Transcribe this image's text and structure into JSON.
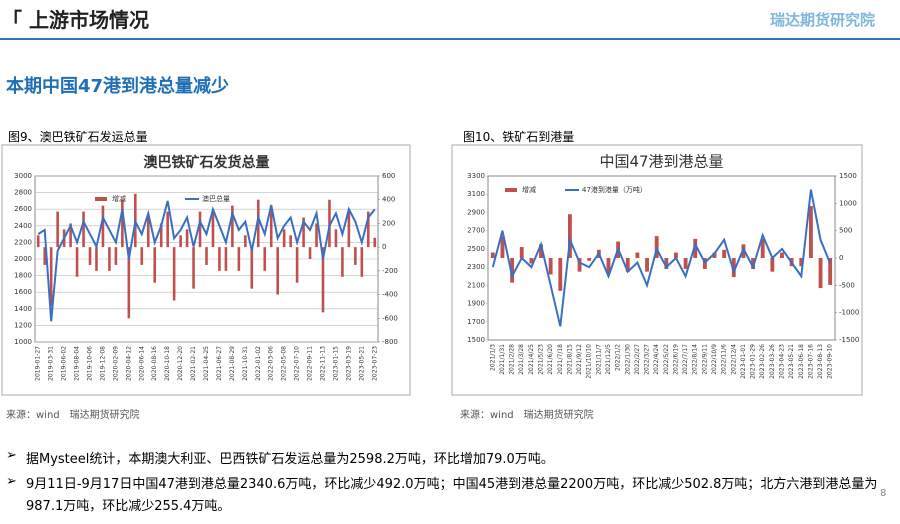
{
  "header": {
    "title": "「 上游市场情况",
    "logo": "瑞达期货研究院"
  },
  "heading": "本期中国47港到港总量减少",
  "figures": [
    {
      "caption": "图9、澳巴铁矿石发运总量",
      "source": "来源：wind　瑞达期货研究院"
    },
    {
      "caption": "图10、铁矿石到港量",
      "source": "来源：wind　瑞达期货研究院"
    }
  ],
  "bullets": [
    "据Mysteel统计，本期澳大利亚、巴西铁矿石发运总量为2598.2万吨，环比增加79.0万吨。",
    "9月11日-9月17日中国47港到港总量2340.6万吨，环比减少492.0万吨；中国45港到港总量2200万吨，环比减少502.8万吨；北方六港到港总量为987.1万吨，环比减少255.4万吨。"
  ],
  "page_number": "8",
  "chart_data": [
    {
      "type": "combo",
      "title": "澳巴铁矿石发货总量",
      "categories": [
        "2019-01-27",
        null,
        "2019-03-31",
        null,
        "2019-06-02",
        null,
        "2019-08-04",
        null,
        "2019-10-06",
        null,
        "2019-12-08",
        null,
        "2020-02-09",
        null,
        "2020-04-12",
        null,
        "2020-06-14",
        null,
        "2020-08-16",
        null,
        "2020-10-18",
        null,
        "2020-12-20",
        null,
        "2021-02-21",
        null,
        "2021-04-25",
        null,
        "2021-06-27",
        null,
        "2021-08-29",
        null,
        "2021-10-31",
        null,
        "2022-01-02",
        null,
        "2022-03-06",
        null,
        "2022-05-08",
        null,
        "2022-07-10",
        null,
        "2022-09-11",
        null,
        "2022-11-13",
        null,
        "2023-01-15",
        null,
        "2023-03-19",
        null,
        "2023-05-21",
        null,
        "2023-07-23"
      ],
      "series": [
        {
          "name": "增减",
          "type": "bar",
          "axis": "y2",
          "color": "#c0504d",
          "values": [
            100,
            -150,
            -500,
            300,
            150,
            200,
            -250,
            300,
            -150,
            -200,
            350,
            -200,
            -150,
            400,
            -600,
            450,
            -150,
            250,
            -300,
            200,
            300,
            -450,
            100,
            150,
            -350,
            300,
            -150,
            300,
            -200,
            -200,
            350,
            -200,
            100,
            -350,
            400,
            -200,
            350,
            -400,
            150,
            100,
            -300,
            250,
            -100,
            200,
            -550,
            400,
            150,
            -250,
            300,
            -150,
            -250,
            300,
            79
          ]
        },
        {
          "name": "澳巴总量",
          "type": "line",
          "color": "#3a6fc4",
          "values": [
            2300,
            2350,
            1250,
            2100,
            2250,
            2400,
            2200,
            2450,
            2300,
            2150,
            2500,
            2350,
            2200,
            2600,
            2000,
            2450,
            2300,
            2550,
            2200,
            2400,
            2700,
            2250,
            2350,
            2500,
            2150,
            2450,
            2300,
            2600,
            2400,
            2200,
            2550,
            2350,
            2450,
            2100,
            2500,
            2300,
            2650,
            2250,
            2400,
            2500,
            2200,
            2450,
            2350,
            2550,
            2000,
            2400,
            2550,
            2300,
            2600,
            2450,
            2200,
            2500,
            2598.2
          ]
        }
      ],
      "ylim": [
        1000,
        3000
      ],
      "yticks": [
        1000,
        1200,
        1400,
        1600,
        1800,
        2000,
        2200,
        2400,
        2600,
        2800,
        3000
      ],
      "y2lim": [
        -800,
        600
      ],
      "y2ticks": [
        -800,
        -600,
        -400,
        -200,
        0,
        200,
        400,
        600
      ],
      "grid": true
    },
    {
      "type": "combo",
      "title": "中国47港到港总量",
      "categories": [
        "2021/1/3",
        "2021/1/31",
        "2021/2/28",
        "2021/3/28",
        "2021/4/25",
        "2021/5/23",
        "2021/6/20",
        "2021/7/18",
        "2021/8/15",
        "2021/9/12",
        "2021/10/10",
        "2021/11/7",
        "2021/12/5",
        "2022/1/2",
        "2022/1/30",
        "2022/2/27",
        "2022/3/27",
        "2022/4/24",
        "2022/5/22",
        "2022/6/19",
        "2022/7/17",
        "2022/8/14",
        "2022/9/11",
        "2022/10/9",
        "2022/11/6",
        "2022/12/4",
        "2023-01-01",
        "2023-01-29",
        "2023-02-26",
        "2023-03-26",
        "2023-04-23",
        "2023-05-21",
        "2023-06-18",
        "2023-07-16",
        "2023-08-13",
        "2023-09-10"
      ],
      "series": [
        {
          "name": "增减",
          "type": "bar",
          "axis": "y2",
          "color": "#c0504d",
          "values": [
            100,
            400,
            -450,
            200,
            -100,
            250,
            -300,
            -600,
            800,
            -250,
            -50,
            150,
            -300,
            300,
            -250,
            100,
            -250,
            400,
            -200,
            100,
            -200,
            350,
            -200,
            100,
            150,
            -350,
            250,
            -200,
            350,
            -250,
            100,
            -150,
            -150,
            950,
            -550,
            -492
          ]
        },
        {
          "name": "47港到港量（万吨）",
          "type": "line",
          "color": "#3a6fc4",
          "values": [
            2300,
            2700,
            2200,
            2400,
            2300,
            2550,
            2100,
            1650,
            2600,
            2350,
            2300,
            2450,
            2200,
            2500,
            2250,
            2350,
            2100,
            2500,
            2300,
            2400,
            2200,
            2550,
            2350,
            2450,
            2600,
            2250,
            2500,
            2300,
            2650,
            2400,
            2500,
            2350,
            2200,
            3150,
            2600,
            2340.6
          ]
        }
      ],
      "ylim": [
        1500,
        3300
      ],
      "yticks": [
        1500,
        1700,
        1900,
        2100,
        2300,
        2500,
        2700,
        2900,
        3100,
        3300
      ],
      "y2lim": [
        -1500,
        1500
      ],
      "y2ticks": [
        -1500,
        -1000,
        -500,
        0,
        500,
        1000,
        1500
      ],
      "grid": false
    }
  ]
}
